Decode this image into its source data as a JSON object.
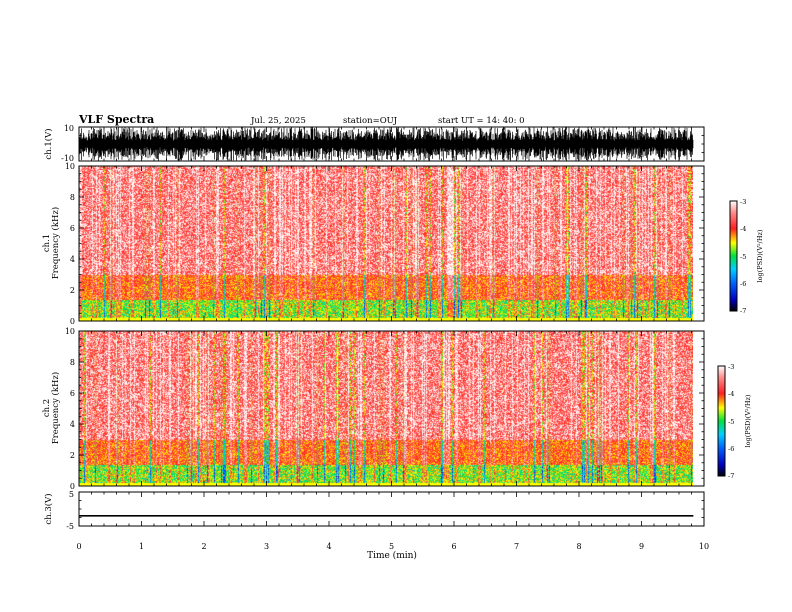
{
  "header": {
    "title": "VLF Spectra",
    "date": "Jul. 25, 2025",
    "station": "station=OUJ",
    "start": "start UT =  14: 40: 0"
  },
  "colors": {
    "red": "#ff2020",
    "yellow": "#ffff00",
    "green": "#00e040",
    "cyan": "#00d0ff",
    "blue": "#0000ff",
    "black": "#000000"
  },
  "chart_data": [
    {
      "type": "line",
      "name": "ch1-waveform",
      "ylabel": "ch.1(V)",
      "ylim": [
        -10,
        10
      ],
      "yticks": [
        "10",
        "-10"
      ],
      "xlim": [
        0,
        10
      ],
      "description_values": {
        "amplitude_min": -10,
        "amplitude_max": 10
      }
    },
    {
      "type": "heatmap",
      "name": "ch1-spectrogram",
      "ylabel_line1": "ch.1",
      "ylabel_line2": "Frequency (kHz)",
      "ylim": [
        0,
        10
      ],
      "yticks": [
        "0",
        "2",
        "4",
        "6",
        "8",
        "10"
      ],
      "xlim": [
        0,
        9.83
      ],
      "colorbar": {
        "label": "log(PSD)(V²/Hz)",
        "range": [
          -7,
          -3
        ],
        "ticks": [
          "-3",
          "-4",
          "-5",
          "-6",
          "-7"
        ]
      }
    },
    {
      "type": "heatmap",
      "name": "ch2-spectrogram",
      "ylabel_line1": "ch.2",
      "ylabel_line2": "Frequency (kHz)",
      "ylim": [
        0,
        10
      ],
      "yticks": [
        "0",
        "2",
        "4",
        "6",
        "8",
        "10"
      ],
      "xlim": [
        0,
        9.83
      ],
      "colorbar": {
        "label": "log(PSD)(V²/Hz)",
        "range": [
          -7,
          -3
        ],
        "ticks": [
          "-3",
          "-4",
          "-5",
          "-6",
          "-7"
        ]
      }
    },
    {
      "type": "line",
      "name": "ch3-waveform",
      "ylabel": "ch.3(V)",
      "ylim": [
        -5,
        5
      ],
      "yticks": [
        "5",
        "-5"
      ],
      "xlim": [
        0,
        10
      ],
      "xlabel": "Time (min)",
      "xticks": [
        "0",
        "1",
        "2",
        "3",
        "4",
        "5",
        "6",
        "7",
        "8",
        "9",
        "10"
      ],
      "level": -2
    }
  ]
}
